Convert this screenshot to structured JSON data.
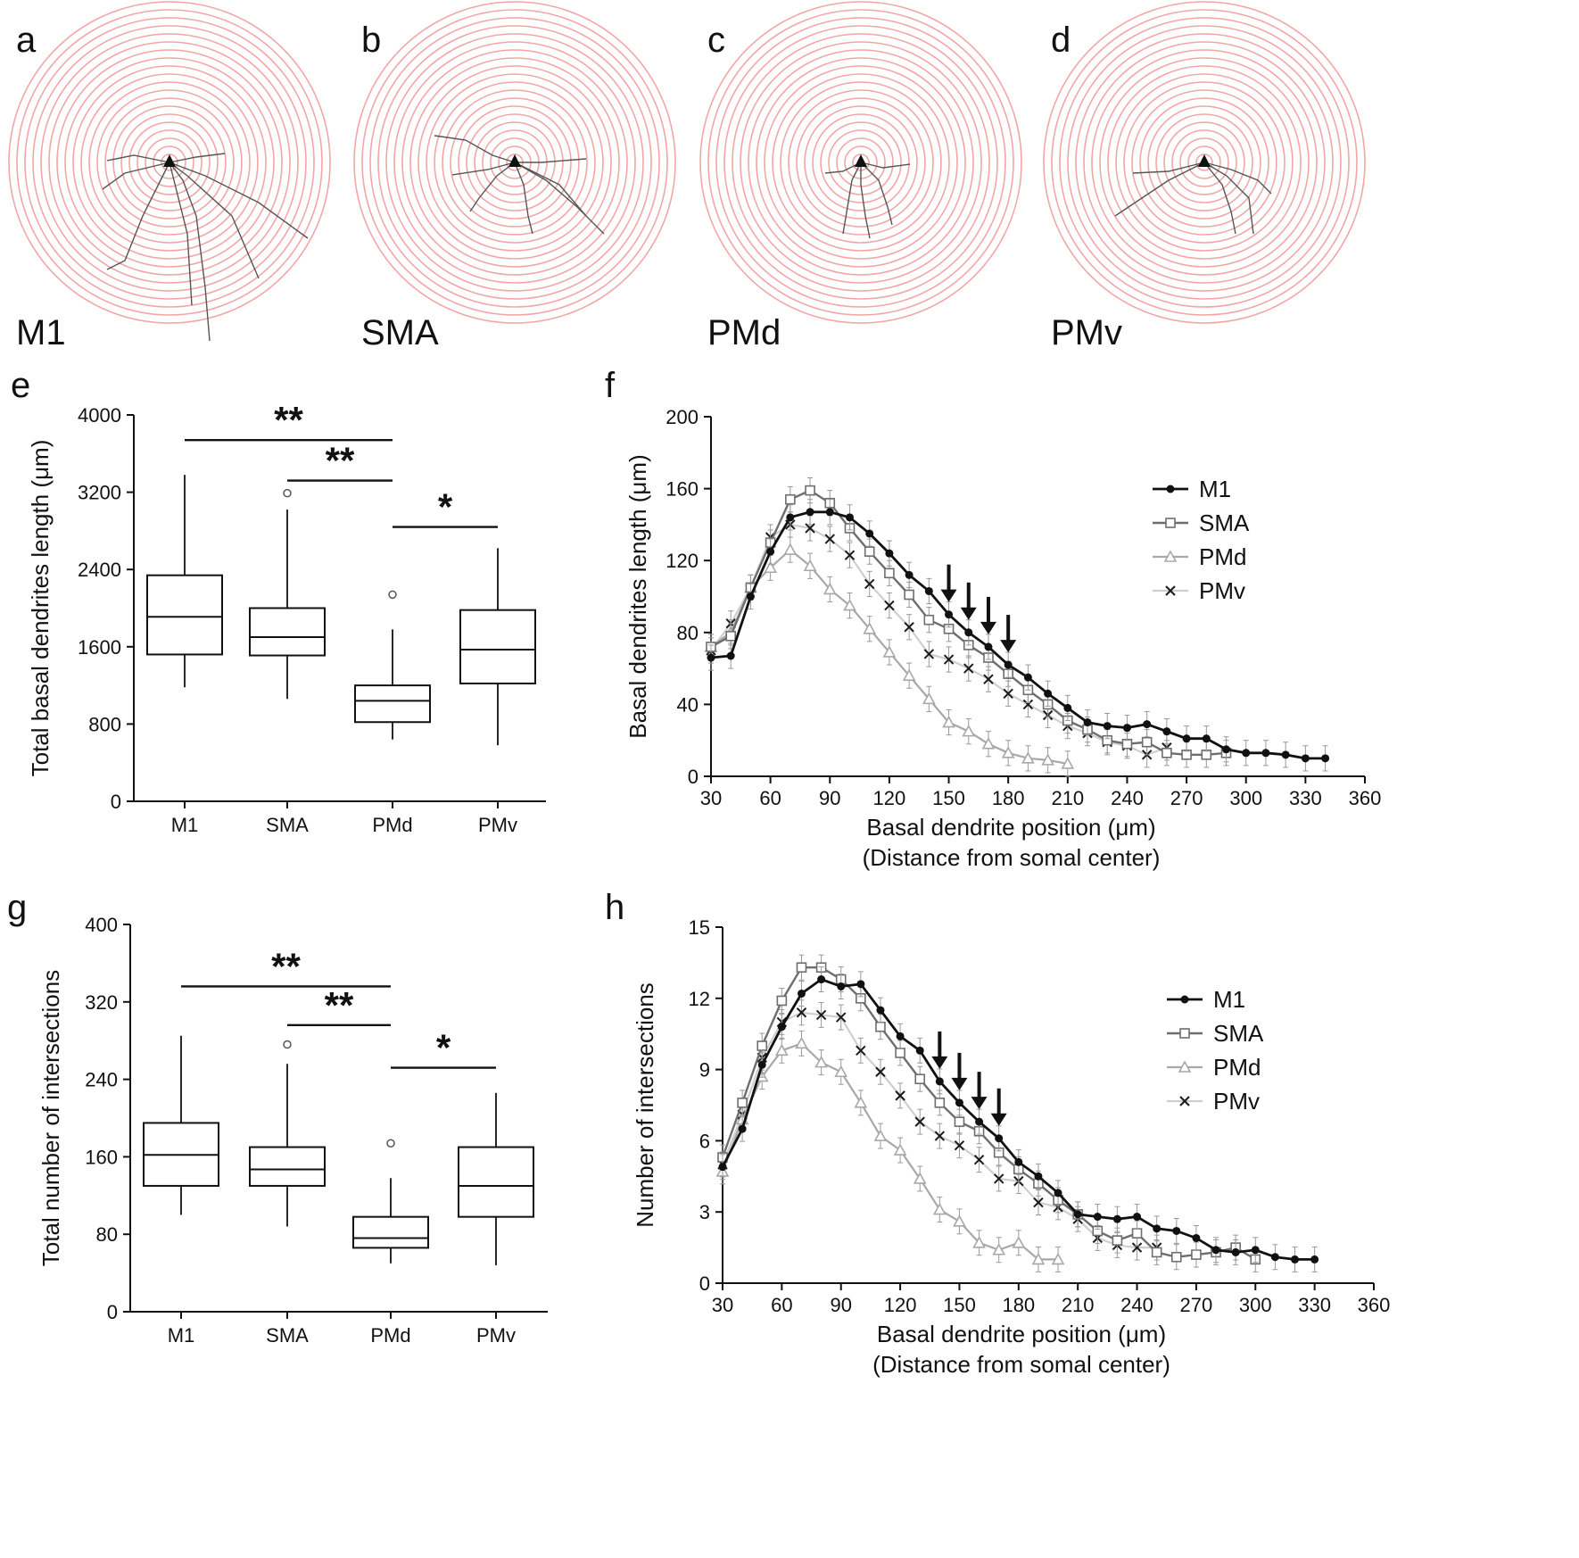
{
  "panels": {
    "a": {
      "letter": "a",
      "region": "M1"
    },
    "b": {
      "letter": "b",
      "region": "SMA"
    },
    "c": {
      "letter": "c",
      "region": "PMd"
    },
    "d": {
      "letter": "d",
      "region": "PMv"
    },
    "e": {
      "letter": "e"
    },
    "f": {
      "letter": "f"
    },
    "g": {
      "letter": "g"
    },
    "h": {
      "letter": "h"
    }
  },
  "sholl": {
    "ring_color": "#f2a6a6",
    "soma_color": "#111111",
    "dendrite_color": "#555555",
    "soma_icon": "pyramidal-soma-icon"
  },
  "colors": {
    "M1": "#111111",
    "SMA": "#6e6e6e",
    "PMd": "#a8a8a8",
    "PMv": "#1a1a1a",
    "axis": "#111111"
  },
  "chart_data": [
    {
      "id": "e",
      "type": "box",
      "ylabel": "Total basal dendrites length (μm)",
      "xlabel": "",
      "categories": [
        "M1",
        "SMA",
        "PMd",
        "PMv"
      ],
      "ylim": [
        0,
        4000
      ],
      "yticks": [
        "0",
        "800",
        "1600",
        "2400",
        "3200",
        "4000"
      ],
      "boxes": [
        {
          "name": "M1",
          "min": 1180,
          "q1": 1520,
          "median": 1910,
          "q3": 2340,
          "max": 3380,
          "outliers": []
        },
        {
          "name": "SMA",
          "min": 1060,
          "q1": 1510,
          "median": 1700,
          "q3": 2000,
          "max": 3020,
          "outliers": [
            3190
          ]
        },
        {
          "name": "PMd",
          "min": 640,
          "q1": 820,
          "median": 1040,
          "q3": 1200,
          "max": 1780,
          "outliers": [
            2140
          ]
        },
        {
          "name": "PMv",
          "min": 580,
          "q1": 1220,
          "median": 1570,
          "q3": 1980,
          "max": 2620,
          "outliers": []
        }
      ],
      "significance": [
        {
          "from": "M1",
          "to": "PMd",
          "label": "**",
          "y": 3740
        },
        {
          "from": "SMA",
          "to": "PMd",
          "label": "**",
          "y": 3320
        },
        {
          "from": "PMd",
          "to": "PMv",
          "label": "*",
          "y": 2840
        }
      ]
    },
    {
      "id": "f",
      "type": "line",
      "ylabel": "Basal dendrites length (μm)",
      "xlabel": "Basal dendrite position (μm)",
      "xlabel2": "(Distance from somal center)",
      "xlim": [
        30,
        360
      ],
      "ylim": [
        0,
        200
      ],
      "xticks": [
        "30",
        "60",
        "90",
        "120",
        "150",
        "180",
        "210",
        "240",
        "270",
        "300",
        "330",
        "360"
      ],
      "yticks": [
        "0",
        "40",
        "80",
        "120",
        "160",
        "200"
      ],
      "legend_position": "top-right",
      "arrows_at": [
        150,
        160,
        170,
        180
      ],
      "series": [
        {
          "name": "M1",
          "marker": "dot",
          "x": [
            30,
            40,
            50,
            60,
            70,
            80,
            90,
            100,
            110,
            120,
            130,
            140,
            150,
            160,
            170,
            180,
            190,
            200,
            210,
            220,
            230,
            240,
            250,
            260,
            270,
            280,
            290,
            300,
            310,
            320,
            330,
            340
          ],
          "y": [
            66,
            67,
            100,
            125,
            144,
            147,
            147,
            144,
            135,
            124,
            112,
            103,
            90,
            80,
            72,
            62,
            55,
            46,
            38,
            30,
            28,
            27,
            29,
            25,
            21,
            21,
            15,
            13,
            13,
            12,
            10,
            10
          ]
        },
        {
          "name": "SMA",
          "marker": "square",
          "x": [
            30,
            40,
            50,
            60,
            70,
            80,
            90,
            100,
            110,
            120,
            130,
            140,
            150,
            160,
            170,
            180,
            190,
            200,
            210,
            220,
            230,
            240,
            250,
            260,
            270,
            280,
            290
          ],
          "y": [
            72,
            78,
            105,
            130,
            154,
            159,
            152,
            138,
            125,
            113,
            101,
            87,
            82,
            73,
            66,
            57,
            48,
            40,
            31,
            26,
            20,
            18,
            19,
            13,
            12,
            12,
            13
          ]
        },
        {
          "name": "PMd",
          "marker": "triangle",
          "x": [
            30,
            40,
            50,
            60,
            70,
            80,
            90,
            100,
            110,
            120,
            130,
            140,
            150,
            160,
            170,
            180,
            190,
            200,
            210
          ],
          "y": [
            72,
            80,
            105,
            116,
            126,
            117,
            104,
            95,
            82,
            69,
            56,
            43,
            30,
            25,
            18,
            13,
            10,
            9,
            7
          ]
        },
        {
          "name": "PMv",
          "marker": "x",
          "x": [
            30,
            40,
            50,
            60,
            70,
            80,
            90,
            100,
            110,
            120,
            130,
            140,
            150,
            160,
            170,
            180,
            190,
            200,
            210,
            220,
            230,
            240,
            250,
            260
          ],
          "y": [
            70,
            85,
            105,
            133,
            140,
            138,
            132,
            123,
            107,
            95,
            83,
            68,
            65,
            60,
            54,
            46,
            40,
            34,
            28,
            24,
            19,
            17,
            12,
            16
          ]
        }
      ]
    },
    {
      "id": "g",
      "type": "box",
      "ylabel": "Total number of intersections",
      "xlabel": "",
      "categories": [
        "M1",
        "SMA",
        "PMd",
        "PMv"
      ],
      "ylim": [
        0,
        400
      ],
      "yticks": [
        "0",
        "80",
        "160",
        "240",
        "320",
        "400"
      ],
      "boxes": [
        {
          "name": "M1",
          "min": 100,
          "q1": 130,
          "median": 162,
          "q3": 195,
          "max": 285,
          "outliers": []
        },
        {
          "name": "SMA",
          "min": 88,
          "q1": 130,
          "median": 147,
          "q3": 170,
          "max": 256,
          "outliers": [
            276
          ]
        },
        {
          "name": "PMd",
          "min": 50,
          "q1": 66,
          "median": 76,
          "q3": 98,
          "max": 138,
          "outliers": [
            174
          ]
        },
        {
          "name": "PMv",
          "min": 48,
          "q1": 98,
          "median": 130,
          "q3": 170,
          "max": 226,
          "outliers": []
        }
      ],
      "significance": [
        {
          "from": "M1",
          "to": "PMd",
          "label": "**",
          "y": 336
        },
        {
          "from": "SMA",
          "to": "PMd",
          "label": "**",
          "y": 296
        },
        {
          "from": "PMd",
          "to": "PMv",
          "label": "*",
          "y": 252
        }
      ]
    },
    {
      "id": "h",
      "type": "line",
      "ylabel": "Number of intersections",
      "xlabel": "Basal dendrite position (μm)",
      "xlabel2": "(Distance from somal center)",
      "xlim": [
        30,
        360
      ],
      "ylim": [
        0,
        15
      ],
      "xticks": [
        "30",
        "60",
        "90",
        "120",
        "150",
        "180",
        "210",
        "240",
        "270",
        "300",
        "330",
        "360"
      ],
      "yticks": [
        "0",
        "3",
        "6",
        "9",
        "12",
        "15"
      ],
      "legend_position": "top-right",
      "arrows_at": [
        140,
        150,
        160,
        170
      ],
      "series": [
        {
          "name": "M1",
          "marker": "dot",
          "x": [
            30,
            40,
            50,
            60,
            70,
            80,
            90,
            100,
            110,
            120,
            130,
            140,
            150,
            160,
            170,
            180,
            190,
            200,
            210,
            220,
            230,
            240,
            250,
            260,
            270,
            280,
            290,
            300,
            310,
            320,
            330
          ],
          "y": [
            4.9,
            6.5,
            9.2,
            10.8,
            12.2,
            12.8,
            12.5,
            12.6,
            11.5,
            10.4,
            9.8,
            8.5,
            7.6,
            6.8,
            6.1,
            5.1,
            4.5,
            3.8,
            2.9,
            2.8,
            2.7,
            2.8,
            2.3,
            2.2,
            1.9,
            1.4,
            1.3,
            1.4,
            1.1,
            1.0,
            1.0
          ]
        },
        {
          "name": "SMA",
          "marker": "square",
          "x": [
            30,
            40,
            50,
            60,
            70,
            80,
            90,
            100,
            110,
            120,
            130,
            140,
            150,
            160,
            170,
            180,
            190,
            200,
            210,
            220,
            230,
            240,
            250,
            260,
            270,
            280,
            290,
            300
          ],
          "y": [
            5.3,
            7.6,
            10.0,
            11.9,
            13.3,
            13.3,
            12.8,
            12.0,
            10.8,
            9.7,
            8.6,
            7.6,
            6.8,
            6.4,
            5.5,
            4.8,
            4.2,
            3.5,
            2.9,
            2.2,
            1.8,
            2.1,
            1.3,
            1.1,
            1.2,
            1.3,
            1.5,
            1.0
          ]
        },
        {
          "name": "PMd",
          "marker": "triangle",
          "x": [
            30,
            40,
            50,
            60,
            70,
            80,
            90,
            100,
            110,
            120,
            130,
            140,
            150,
            160,
            170,
            180,
            190,
            200
          ],
          "y": [
            4.7,
            6.9,
            8.7,
            9.8,
            10.1,
            9.3,
            8.9,
            7.6,
            6.2,
            5.6,
            4.4,
            3.1,
            2.6,
            1.7,
            1.4,
            1.7,
            1.0,
            1.0
          ]
        },
        {
          "name": "PMv",
          "marker": "x",
          "x": [
            30,
            40,
            50,
            60,
            70,
            80,
            90,
            100,
            110,
            120,
            130,
            140,
            150,
            160,
            170,
            180,
            190,
            200,
            210,
            220,
            230,
            240,
            250
          ],
          "y": [
            5.0,
            7.1,
            9.5,
            11.0,
            11.4,
            11.3,
            11.2,
            9.8,
            8.9,
            7.9,
            6.8,
            6.2,
            5.8,
            5.2,
            4.4,
            4.3,
            3.4,
            3.2,
            2.7,
            1.9,
            1.6,
            1.5,
            1.5
          ]
        }
      ]
    }
  ]
}
